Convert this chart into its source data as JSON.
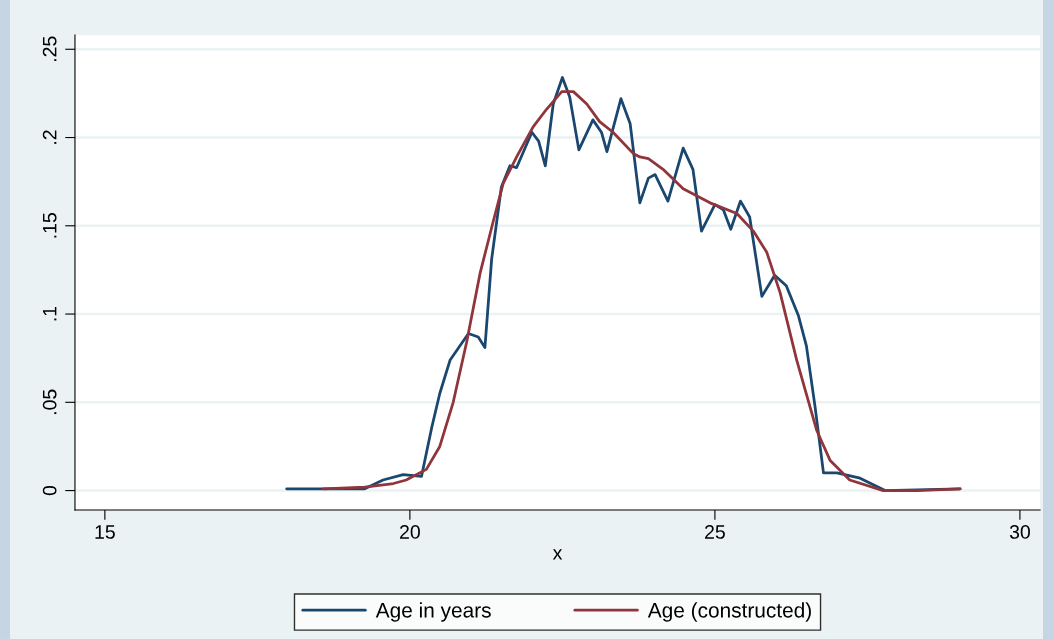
{
  "chart_data": {
    "type": "line",
    "xlabel": "x",
    "xlim": [
      14.51,
      30.33
    ],
    "xticks": [
      15,
      20,
      25,
      30
    ],
    "ylim": [
      -0.011,
      0.258
    ],
    "yticks": [
      {
        "value": 0,
        "label": "0"
      },
      {
        "value": 0.05,
        "label": ".05"
      },
      {
        "value": 0.1,
        "label": ".1"
      },
      {
        "value": 0.15,
        "label": ".15"
      },
      {
        "value": 0.2,
        "label": ".2"
      },
      {
        "value": 0.25,
        "label": ".25"
      }
    ],
    "grid": "y",
    "legend": "bottom",
    "line_style": "solid",
    "marker": "none",
    "series": [
      {
        "name": "Age in years",
        "color": "#1a476f",
        "x": [
          17.98,
          19.26,
          19.56,
          19.89,
          20.19,
          20.36,
          20.49,
          20.66,
          20.96,
          21.12,
          21.23,
          21.34,
          21.5,
          21.64,
          21.75,
          22.0,
          22.11,
          22.22,
          22.35,
          22.5,
          22.62,
          22.77,
          23.0,
          23.14,
          23.23,
          23.46,
          23.61,
          23.77,
          23.91,
          24.02,
          24.23,
          24.48,
          24.64,
          24.78,
          25.0,
          25.14,
          25.26,
          25.42,
          25.57,
          25.77,
          25.98,
          26.17,
          26.37,
          26.5,
          26.64,
          26.78,
          27.0,
          27.38,
          27.79,
          29.02
        ],
        "values": [
          0.001,
          0.001,
          0.006,
          0.009,
          0.008,
          0.036,
          0.055,
          0.074,
          0.089,
          0.087,
          0.081,
          0.131,
          0.172,
          0.184,
          0.183,
          0.203,
          0.198,
          0.184,
          0.219,
          0.234,
          0.223,
          0.193,
          0.21,
          0.203,
          0.192,
          0.222,
          0.208,
          0.163,
          0.177,
          0.179,
          0.164,
          0.194,
          0.182,
          0.147,
          0.162,
          0.159,
          0.148,
          0.164,
          0.155,
          0.11,
          0.122,
          0.116,
          0.099,
          0.082,
          0.048,
          0.01,
          0.01,
          0.007,
          0.0,
          0.001
        ]
      },
      {
        "name": "Age (constructed)",
        "color": "#90353b",
        "x": [
          18.58,
          19.26,
          19.73,
          19.94,
          20.27,
          20.49,
          20.71,
          20.93,
          21.15,
          21.37,
          21.53,
          21.75,
          22.02,
          22.24,
          22.49,
          22.68,
          22.9,
          23.11,
          23.33,
          23.66,
          23.77,
          23.91,
          24.15,
          24.48,
          24.92,
          25.36,
          25.63,
          25.85,
          26.07,
          26.34,
          26.67,
          26.89,
          27.21,
          27.76,
          28.31,
          29.02
        ],
        "values": [
          0.001,
          0.002,
          0.004,
          0.006,
          0.012,
          0.025,
          0.05,
          0.084,
          0.123,
          0.153,
          0.174,
          0.189,
          0.206,
          0.216,
          0.226,
          0.226,
          0.219,
          0.209,
          0.203,
          0.191,
          0.189,
          0.188,
          0.182,
          0.171,
          0.163,
          0.157,
          0.147,
          0.135,
          0.112,
          0.074,
          0.034,
          0.017,
          0.006,
          0.0,
          0.0,
          0.001
        ]
      }
    ]
  }
}
